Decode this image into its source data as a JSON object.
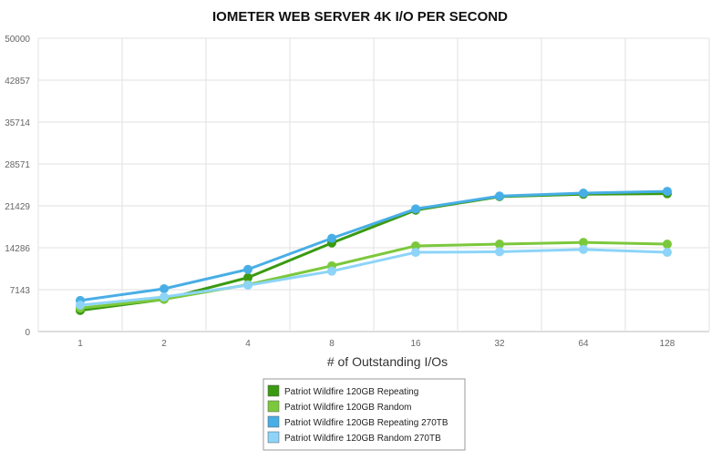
{
  "chart_data": {
    "type": "line",
    "title": "IOMETER WEB SERVER 4K I/O PER SECOND",
    "xlabel": "# of Outstanding I/Os",
    "ylabel": "",
    "categories": [
      "1",
      "2",
      "4",
      "8",
      "16",
      "32",
      "64",
      "128"
    ],
    "y_ticks": [
      "0",
      "7143",
      "14286",
      "21429",
      "28571",
      "35714",
      "42857",
      "50000"
    ],
    "ylim": [
      0,
      50000
    ],
    "grid": true,
    "legend_position": "bottom-center",
    "series": [
      {
        "name": "Patriot Wildfire 120GB Repeating",
        "color": "#3a9a12",
        "values": [
          3600,
          5500,
          9200,
          15100,
          20700,
          23000,
          23400,
          23500
        ]
      },
      {
        "name": "Patriot Wildfire 120GB Random",
        "color": "#7cc83c",
        "values": [
          4000,
          5500,
          8000,
          11200,
          14600,
          14900,
          15200,
          14900
        ]
      },
      {
        "name": "Patriot Wildfire 120GB Repeating 270TB",
        "color": "#48aee6",
        "values": [
          5300,
          7300,
          10600,
          15900,
          20900,
          23100,
          23600,
          23900
        ]
      },
      {
        "name": "Patriot Wildfire 120GB Random 270TB",
        "color": "#8dd4f8",
        "values": [
          4500,
          5900,
          7900,
          10300,
          13500,
          13600,
          14000,
          13500
        ]
      }
    ]
  }
}
